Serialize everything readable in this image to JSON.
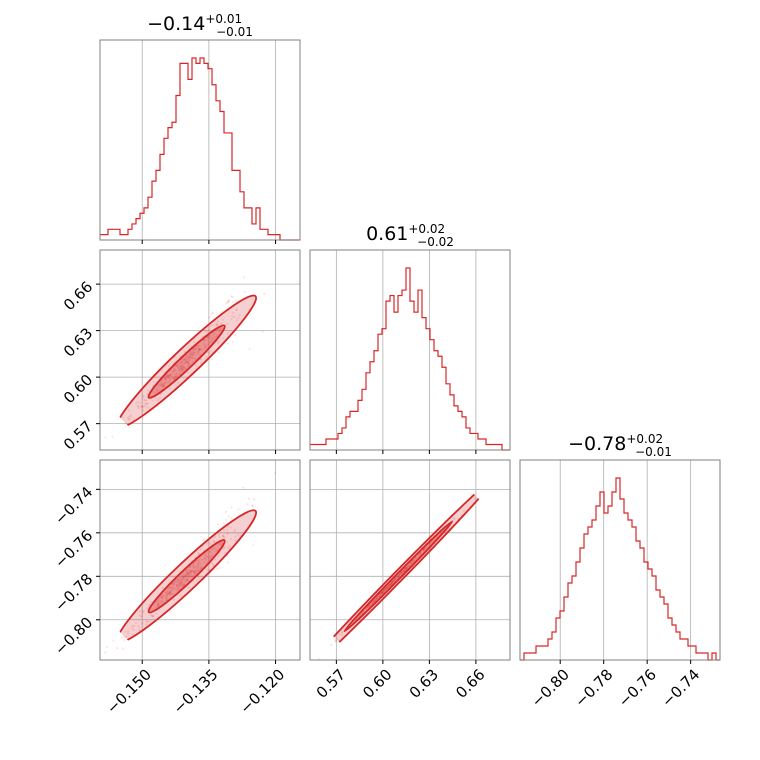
{
  "chart_data": {
    "type": "corner",
    "color": "#d62728",
    "parameters": [
      {
        "index": 0,
        "range": [
          -0.1595,
          -0.1145
        ],
        "median": -0.14,
        "ticks": [
          -0.15,
          -0.135,
          -0.12
        ],
        "tick_labels": [
          "−0.150",
          "−0.135",
          "−0.120"
        ],
        "title": {
          "value": "−0.14",
          "plus": "+0.01",
          "minus": "−0.01"
        }
      },
      {
        "index": 1,
        "range": [
          0.553,
          0.682
        ],
        "median": 0.61,
        "ticks": [
          0.57,
          0.6,
          0.63,
          0.66
        ],
        "tick_labels": [
          "0.57",
          "0.60",
          "0.63",
          "0.66"
        ],
        "title": {
          "value": "0.61",
          "plus": "+0.02",
          "minus": "−0.02"
        }
      },
      {
        "index": 2,
        "range": [
          -0.8185,
          -0.7265
        ],
        "median": -0.78,
        "ticks": [
          -0.8,
          -0.78,
          -0.76,
          -0.74
        ],
        "tick_labels": [
          "−0.80",
          "−0.78",
          "−0.76",
          "−0.74"
        ],
        "title": {
          "value": "−0.78",
          "plus": "+0.02",
          "minus": "−0.01"
        }
      }
    ],
    "histograms": [
      {
        "param": 0,
        "bins": 50,
        "counts": [
          1,
          1,
          2,
          2,
          2,
          1,
          1,
          2,
          3,
          4,
          5,
          6,
          8,
          11,
          13,
          16,
          19,
          21,
          22,
          27,
          33,
          33,
          30,
          34,
          33,
          34,
          33,
          32,
          29,
          26,
          24,
          20,
          20,
          13,
          13,
          9,
          6,
          6,
          3,
          6,
          2,
          2,
          1,
          1,
          1,
          0,
          0,
          0,
          0,
          0
        ]
      },
      {
        "param": 1,
        "bins": 50,
        "counts": [
          1,
          1,
          1,
          1,
          2,
          2,
          2,
          3,
          4,
          6,
          7,
          7,
          9,
          11,
          14,
          16,
          18,
          21,
          22,
          27,
          28,
          25,
          28,
          29,
          33,
          27,
          25,
          29,
          24,
          22,
          20,
          18,
          17,
          15,
          12,
          10,
          8,
          7,
          6,
          4,
          3,
          3,
          2,
          2,
          1,
          1,
          1,
          1,
          0,
          0
        ]
      },
      {
        "param": 2,
        "bins": 50,
        "counts": [
          0,
          1,
          1,
          1,
          2,
          2,
          2,
          3,
          4,
          6,
          7,
          9,
          11,
          12,
          14,
          16,
          18,
          19,
          20,
          22,
          24,
          21,
          22,
          24,
          26,
          23,
          21,
          20,
          19,
          17,
          16,
          14,
          13,
          12,
          10,
          9,
          8,
          6,
          5,
          4,
          3,
          3,
          2,
          2,
          1,
          1,
          1,
          0,
          1,
          0
        ]
      }
    ],
    "pairs": [
      {
        "x_param": 0,
        "y_param": 1,
        "correlation": "strong-positive"
      },
      {
        "x_param": 0,
        "y_param": 2,
        "correlation": "strong-positive"
      },
      {
        "x_param": 1,
        "y_param": 2,
        "correlation": "near-linear"
      }
    ],
    "grid": true,
    "contour_levels": 2
  },
  "titles": {
    "p0": {
      "value": "−0.14",
      "plus": "+0.01",
      "minus": "−0.01"
    },
    "p1": {
      "value": "0.61",
      "plus": "+0.02",
      "minus": "−0.02"
    },
    "p2": {
      "value": "−0.78",
      "plus": "+0.02",
      "minus": "−0.01"
    }
  }
}
